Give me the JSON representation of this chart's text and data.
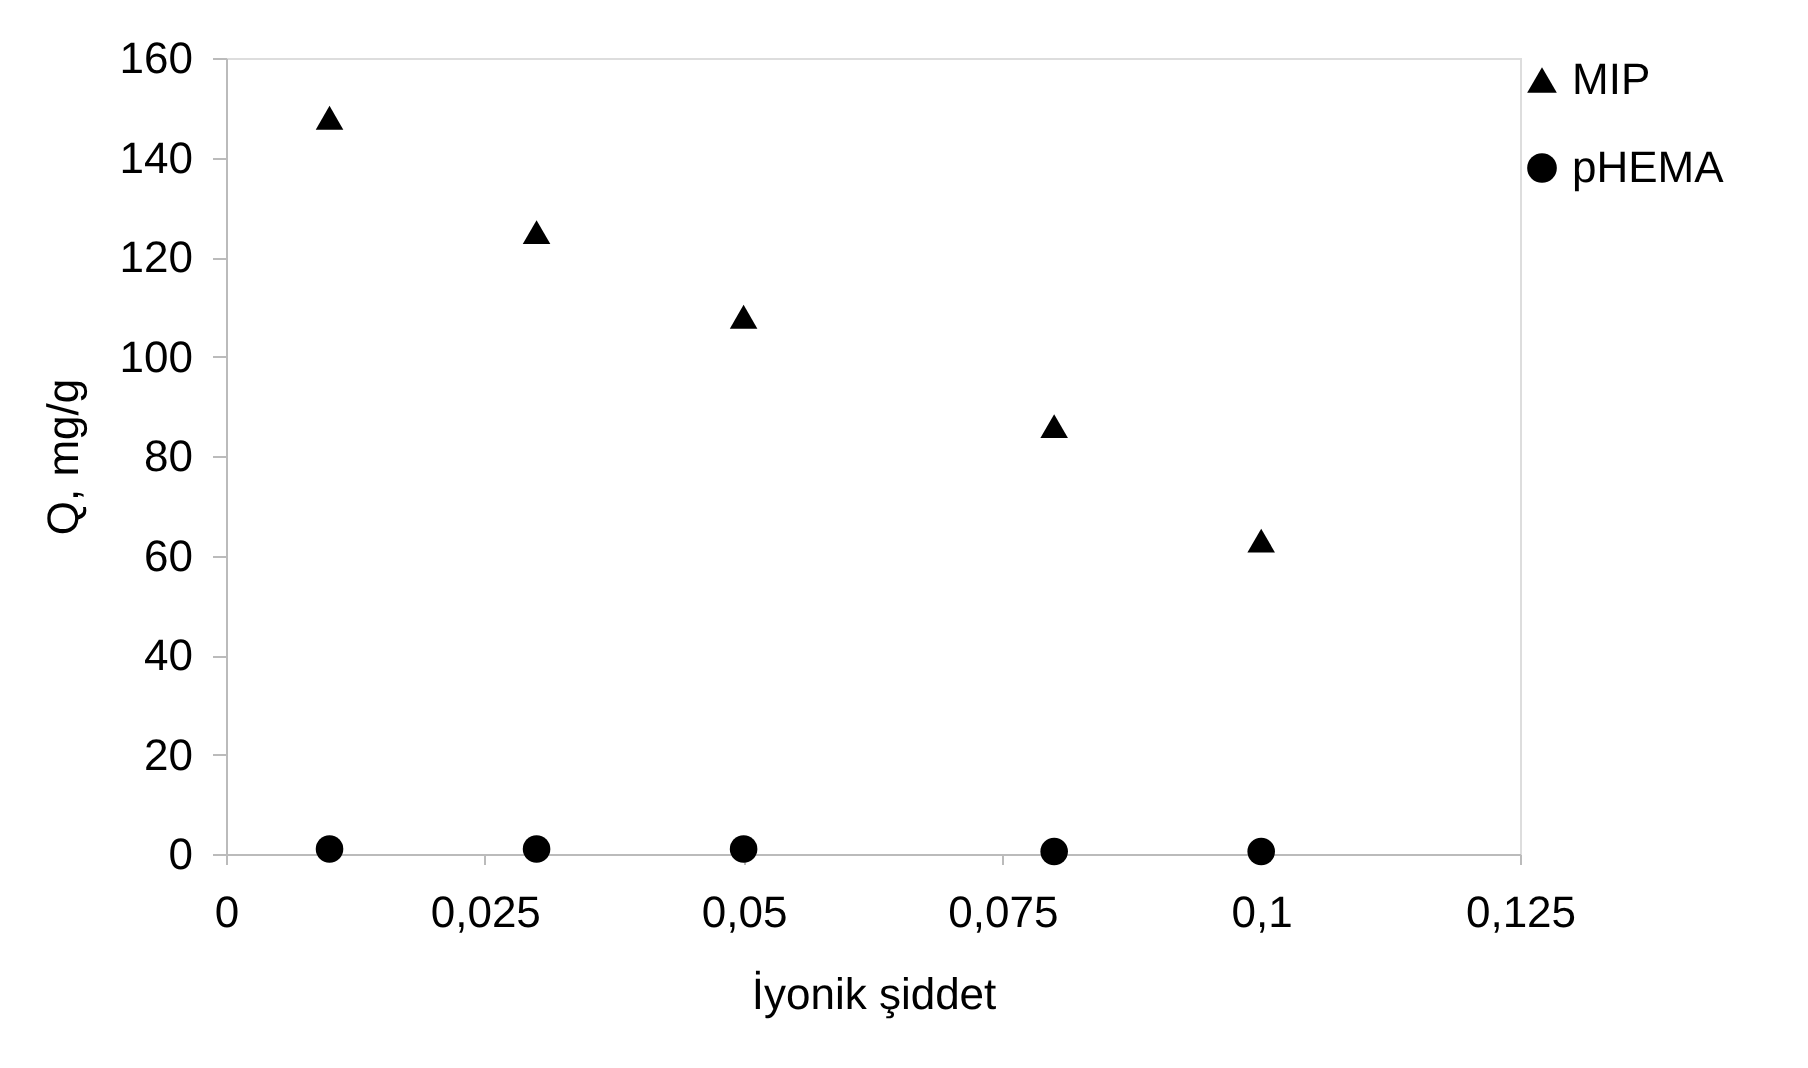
{
  "chart_data": {
    "type": "scatter",
    "xlabel": "İyonik şiddet",
    "ylabel": "Q, mg/g",
    "x": [
      0.01,
      0.03,
      0.05,
      0.08,
      0.1
    ],
    "series": [
      {
        "name": "MIP",
        "color": "#000000",
        "marker": "triangle",
        "values": [
          148,
          125,
          108,
          86,
          63
        ]
      },
      {
        "name": "pHEMA",
        "color": "#000000",
        "marker": "circle",
        "values": [
          1,
          1,
          1,
          0.5,
          0.5
        ]
      }
    ],
    "xlim": [
      0,
      0.125
    ],
    "xticks": [
      0,
      {
        "value": 0.025,
        "label": "0,025"
      },
      {
        "value": 0.05,
        "label": "0,05"
      },
      {
        "value": 0.075,
        "label": "0,075"
      },
      {
        "value": 0.1,
        "label": "0,1"
      },
      {
        "value": 0.125,
        "label": "0,125"
      }
    ],
    "ylim": [
      0,
      160
    ],
    "yticks": [
      0,
      20,
      40,
      60,
      80,
      100,
      120,
      140,
      160
    ],
    "grid": false,
    "legend": "right"
  }
}
